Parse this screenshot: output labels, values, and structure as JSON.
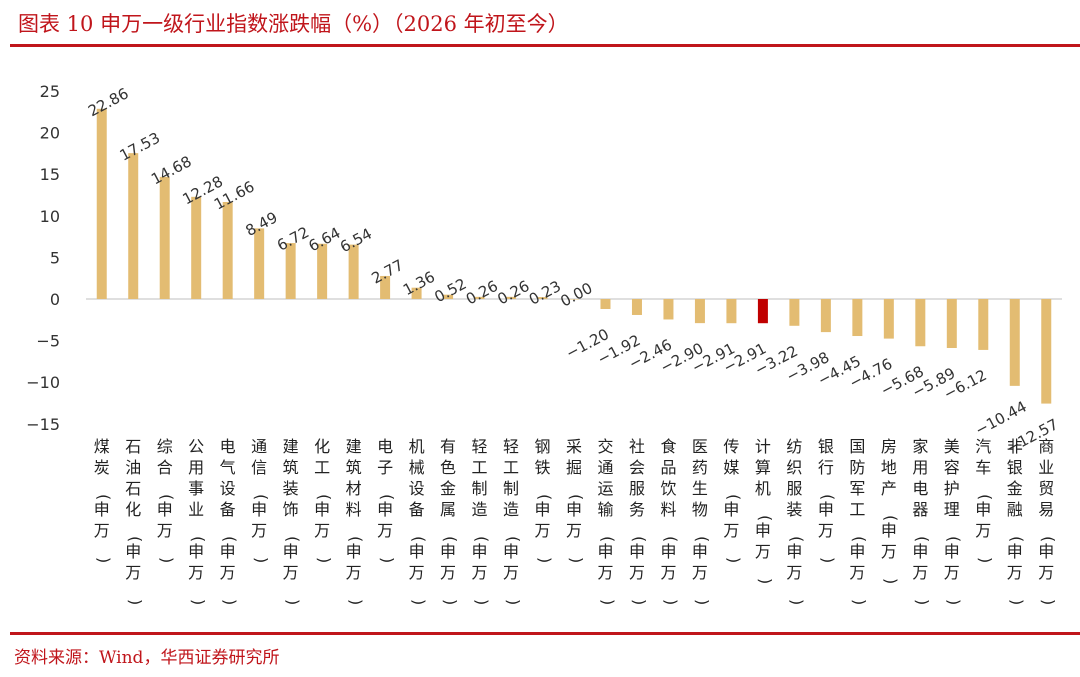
{
  "title": "图表 10  申万一级行业指数涨跌幅（%）（2026 年初至今）",
  "source": "资料来源：Wind，华西证券研究所",
  "colors": {
    "brand": "#c0151b",
    "bar": "#e3bc72",
    "highlight": "#c00000",
    "axis": "#bfbfbf"
  },
  "chart_data": {
    "type": "bar",
    "title": "",
    "xlabel": "",
    "ylabel": "",
    "ylim": [
      -15,
      25
    ],
    "yticks": [
      "25",
      "20",
      "15",
      "10",
      "5",
      "0",
      "−5",
      "−10",
      "−15"
    ],
    "grid": false,
    "legend": "none",
    "highlight_category": "计算机(申万)",
    "categories": [
      "煤炭(申万)",
      "石油石化(申万)",
      "综合(申万)",
      "公用事业(申万)",
      "电气设备(申万)",
      "通信(申万)",
      "建筑装饰(申万)",
      "化工(申万)",
      "建筑材料(申万)",
      "电子(申万)",
      "机械设备(申万)",
      "有色金属(申万)",
      "轻工制造(申万)",
      "轻工制造(申万)",
      "钢铁(申万)",
      "采掘(申万)",
      "交通运输(申万)",
      "社会服务(申万)",
      "食品饮料(申万)",
      "医药生物(申万)",
      "传媒(申万)",
      "计算机(申万)",
      "纺织服装(申万)",
      "银行(申万)",
      "国防军工(申万)",
      "房地产(申万)",
      "家用电器(申万)",
      "美容护理(申万)",
      "汽车(申万)",
      "非银金融(申万)",
      "商业贸易(申万)"
    ],
    "values": [
      22.86,
      17.53,
      14.68,
      12.28,
      11.66,
      8.49,
      6.72,
      6.64,
      6.54,
      2.77,
      1.36,
      0.52,
      0.26,
      0.26,
      0.23,
      0.0,
      -1.2,
      -1.92,
      -2.46,
      -2.9,
      -2.91,
      -2.91,
      -3.22,
      -3.98,
      -4.45,
      -4.76,
      -5.68,
      -5.89,
      -6.12,
      -10.44,
      -12.57
    ],
    "labels": [
      "22.86",
      "17.53",
      "14.68",
      "12.28",
      "11.66",
      "8.49",
      "6.72",
      "6.64",
      "6.54",
      "2.77",
      "1.36",
      "0.52",
      "0.26",
      "0.26",
      "0.23",
      "0.00",
      "−1.20",
      "−1.92",
      "−2.46",
      "−2.90",
      "−2.91",
      "−2.91",
      "−3.22",
      "−3.98",
      "−4.45",
      "−4.76",
      "−5.68",
      "−5.89",
      "−6.12",
      "−10.44",
      "−12.57"
    ]
  }
}
